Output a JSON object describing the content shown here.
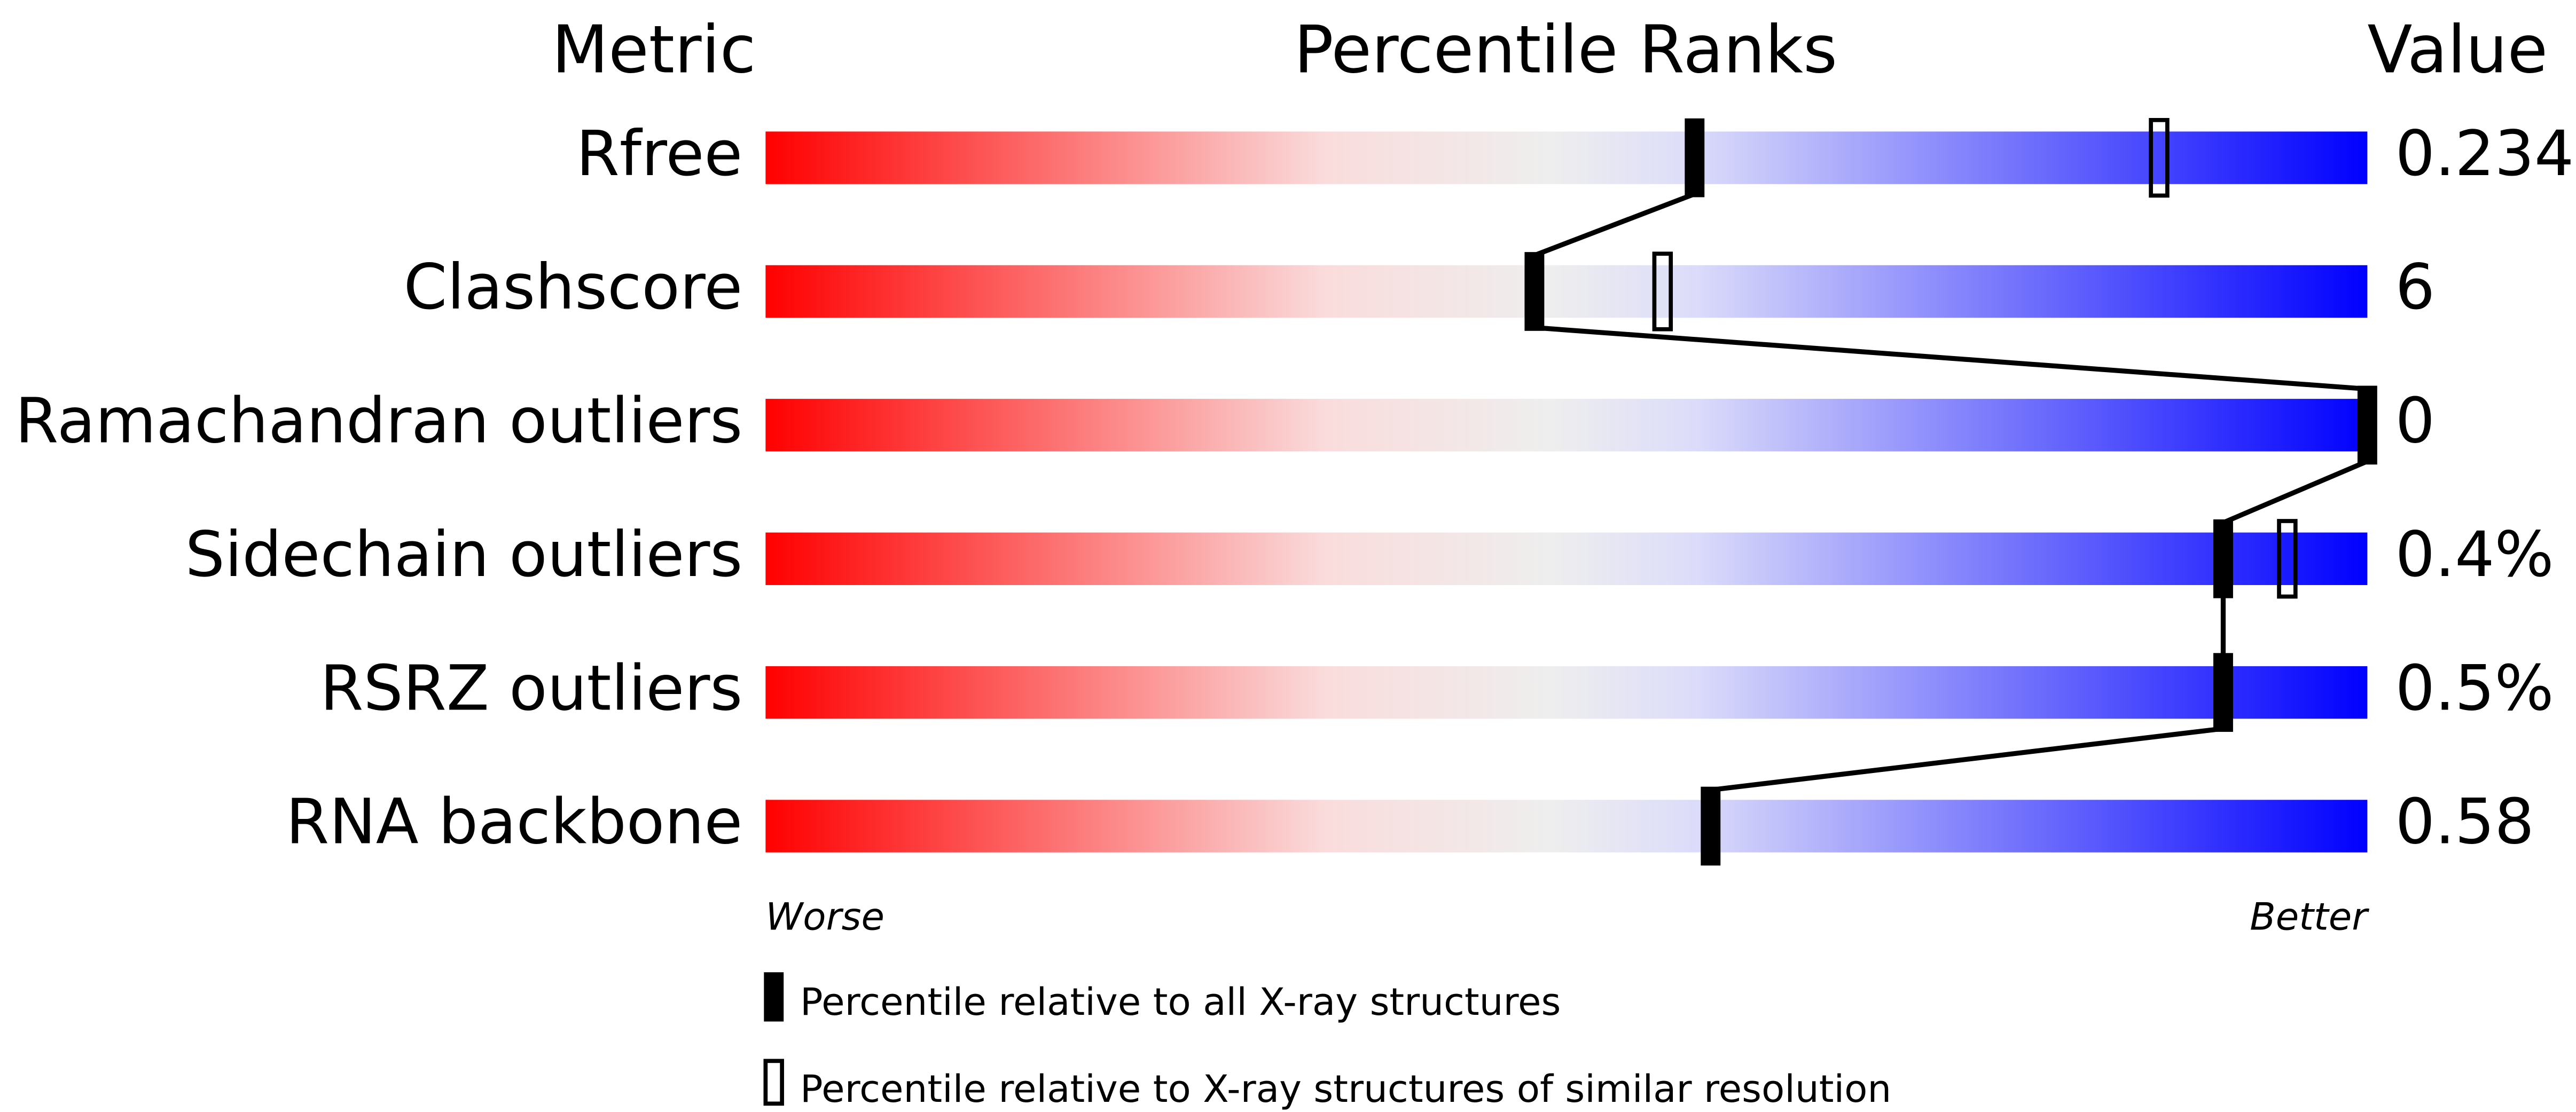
{
  "chart_data": {
    "type": "percentile-slider",
    "headers": {
      "metric": "Metric",
      "percentile": "Percentile Ranks",
      "value": "Value"
    },
    "axis": {
      "min_label": "Worse",
      "max_label": "Better",
      "range": [
        0,
        100
      ]
    },
    "gradient_colors": [
      "#ff0000",
      "#fadcdc",
      "#eeeeee",
      "#dcdcfa",
      "#0000ff"
    ],
    "metrics": [
      {
        "name": "Rfree",
        "value": "0.234",
        "percentile_all": 58,
        "percentile_similar": 87
      },
      {
        "name": "Clashscore",
        "value": "6",
        "percentile_all": 48,
        "percentile_similar": 56
      },
      {
        "name": "Ramachandran outliers",
        "value": "0",
        "percentile_all": 100,
        "percentile_similar": null
      },
      {
        "name": "Sidechain outliers",
        "value": "0.4%",
        "percentile_all": 91,
        "percentile_similar": 95
      },
      {
        "name": "RSRZ outliers",
        "value": "0.5%",
        "percentile_all": 91,
        "percentile_similar": null
      },
      {
        "name": "RNA backbone",
        "value": "0.58",
        "percentile_all": 59,
        "percentile_similar": null
      }
    ],
    "legend": [
      {
        "marker": "filled",
        "label": "Percentile relative to all X-ray structures"
      },
      {
        "marker": "open",
        "label": "Percentile relative to X-ray structures of similar resolution"
      }
    ]
  }
}
